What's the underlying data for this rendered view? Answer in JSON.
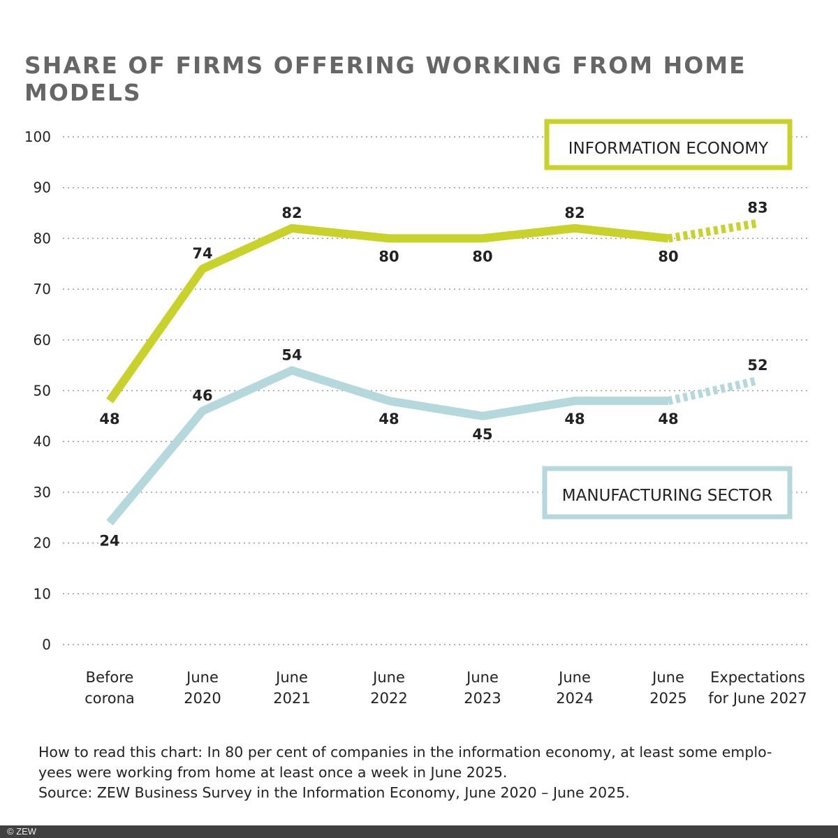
{
  "chart_data": {
    "type": "line",
    "title": "SHARE OF FIRMS OFFERING WORKING FROM HOME MODELS",
    "categories": [
      [
        "Before",
        "corona"
      ],
      [
        "June",
        "2020"
      ],
      [
        "June",
        "2021"
      ],
      [
        "June",
        "2022"
      ],
      [
        "June",
        "2023"
      ],
      [
        "June",
        "2024"
      ],
      [
        "June",
        "2025"
      ],
      [
        "Expectations",
        "for June 2027"
      ]
    ],
    "ylim": [
      0,
      100
    ],
    "yticks": [
      0,
      10,
      20,
      30,
      40,
      50,
      60,
      70,
      80,
      90,
      100
    ],
    "grid": "horizontal dotted",
    "series": [
      {
        "name": "INFORMATION ECONOMY",
        "color": "#c8d22a",
        "values": [
          48,
          74,
          82,
          80,
          80,
          82,
          80,
          83
        ],
        "dashed_last_segment": true
      },
      {
        "name": "MANUFACTURING SECTOR",
        "color": "#b4d8dc",
        "values": [
          24,
          46,
          54,
          48,
          45,
          48,
          48,
          52
        ],
        "dashed_last_segment": true
      }
    ]
  },
  "note_lines": [
    "How to read this chart: In 80 per cent of companies in the information economy, at least some emplo-",
    "yees were working from home at least once a week in June 2025.",
    "Source: ZEW Business Survey in the Information Economy, June 2020 – June 2025."
  ],
  "footer": "© ZEW"
}
